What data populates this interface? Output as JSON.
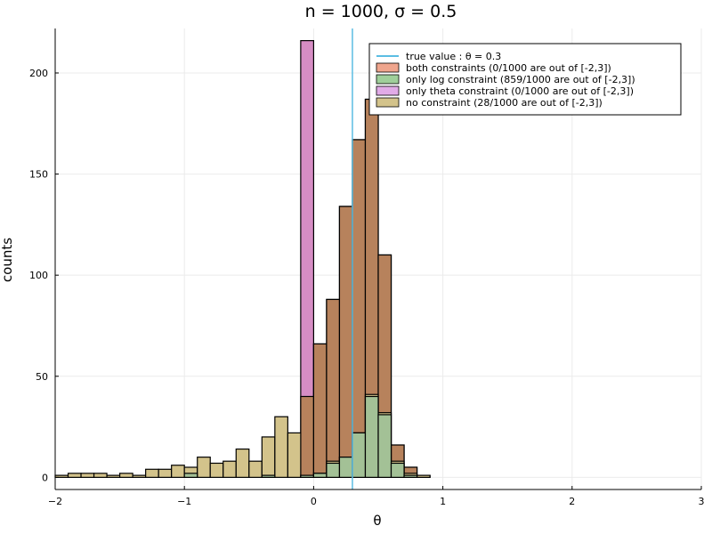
{
  "chart_data": {
    "type": "bar",
    "title": "n = 1000, σ = 0.5",
    "xlabel": "θ",
    "ylabel": "counts",
    "xlim": [
      -2,
      3
    ],
    "ylim": [
      -6,
      222
    ],
    "grid": true,
    "legend_position": "top-right",
    "xticks": [
      -2,
      -1,
      0,
      1,
      2,
      3
    ],
    "xtick_labels": [
      "−2",
      "−1",
      "0",
      "1",
      "2",
      "3"
    ],
    "yticks": [
      0,
      50,
      100,
      150,
      200
    ],
    "ytick_labels": [
      "0",
      "50",
      "100",
      "150",
      "200"
    ],
    "bin_width": 0.1,
    "reference_line": {
      "label": "true value : θ = 0.3",
      "x": 0.3,
      "color": "#5bbde3"
    },
    "series": [
      {
        "name": "only theta constraint (0/1000 are out of [-2,3])",
        "color": "#d68dc4",
        "bins": [
          {
            "x0": -0.1,
            "value": 216
          },
          {
            "x0": 0.0,
            "value": 66
          },
          {
            "x0": 0.1,
            "value": 88
          },
          {
            "x0": 0.2,
            "value": 134
          },
          {
            "x0": 0.3,
            "value": 167
          },
          {
            "x0": 0.4,
            "value": 187
          },
          {
            "x0": 0.5,
            "value": 110
          },
          {
            "x0": 0.6,
            "value": 16
          },
          {
            "x0": 0.7,
            "value": 5
          },
          {
            "x0": 0.8,
            "value": 1
          }
        ]
      },
      {
        "name": "both constraints (0/1000 are out of [-2,3])",
        "color": "#b7825c",
        "bins": [
          {
            "x0": -0.1,
            "value": 40
          },
          {
            "x0": 0.0,
            "value": 66
          },
          {
            "x0": 0.1,
            "value": 88
          },
          {
            "x0": 0.2,
            "value": 134
          },
          {
            "x0": 0.3,
            "value": 167
          },
          {
            "x0": 0.4,
            "value": 187
          },
          {
            "x0": 0.5,
            "value": 110
          },
          {
            "x0": 0.6,
            "value": 16
          },
          {
            "x0": 0.7,
            "value": 5
          },
          {
            "x0": 0.8,
            "value": 1
          }
        ]
      },
      {
        "name": "no constraint (28/1000 are out of [-2,3])",
        "color": "#d3c38b",
        "bins": [
          {
            "x0": -2.0,
            "value": 1
          },
          {
            "x0": -1.9,
            "value": 2
          },
          {
            "x0": -1.8,
            "value": 2
          },
          {
            "x0": -1.7,
            "value": 2
          },
          {
            "x0": -1.6,
            "value": 1
          },
          {
            "x0": -1.5,
            "value": 2
          },
          {
            "x0": -1.4,
            "value": 1
          },
          {
            "x0": -1.3,
            "value": 4
          },
          {
            "x0": -1.2,
            "value": 4
          },
          {
            "x0": -1.1,
            "value": 6
          },
          {
            "x0": -1.0,
            "value": 5
          },
          {
            "x0": -0.9,
            "value": 10
          },
          {
            "x0": -0.8,
            "value": 7
          },
          {
            "x0": -0.7,
            "value": 8
          },
          {
            "x0": -0.6,
            "value": 14
          },
          {
            "x0": -0.5,
            "value": 8
          },
          {
            "x0": -0.4,
            "value": 20
          },
          {
            "x0": -0.3,
            "value": 30
          },
          {
            "x0": -0.2,
            "value": 22
          },
          {
            "x0": -0.1,
            "value": 1
          },
          {
            "x0": 0.0,
            "value": 2
          },
          {
            "x0": 0.1,
            "value": 8
          },
          {
            "x0": 0.2,
            "value": 10
          },
          {
            "x0": 0.3,
            "value": 22
          },
          {
            "x0": 0.4,
            "value": 41
          },
          {
            "x0": 0.5,
            "value": 32
          },
          {
            "x0": 0.6,
            "value": 8
          },
          {
            "x0": 0.7,
            "value": 2
          },
          {
            "x0": 0.8,
            "value": 1
          }
        ]
      },
      {
        "name": "only log constraint (859/1000 are out of [-2,3])",
        "color": "#a3c196",
        "bins": [
          {
            "x0": -2.0,
            "value": 0
          },
          {
            "x0": -1.0,
            "value": 2
          },
          {
            "x0": -0.4,
            "value": 1
          },
          {
            "x0": -0.1,
            "value": 1
          },
          {
            "x0": 0.0,
            "value": 2
          },
          {
            "x0": 0.1,
            "value": 7
          },
          {
            "x0": 0.2,
            "value": 10
          },
          {
            "x0": 0.3,
            "value": 22
          },
          {
            "x0": 0.4,
            "value": 40
          },
          {
            "x0": 0.5,
            "value": 31
          },
          {
            "x0": 0.6,
            "value": 7
          },
          {
            "x0": 0.7,
            "value": 1
          }
        ]
      }
    ],
    "legend": [
      {
        "label": "true value : θ = 0.3",
        "kind": "line",
        "color": "#5bbde3"
      },
      {
        "label": "both constraints (0/1000 are out of [-2,3])",
        "kind": "patch",
        "color": "#efa58d"
      },
      {
        "label": "only log constraint (859/1000 are out of [-2,3])",
        "kind": "patch",
        "color": "#9fcf9a"
      },
      {
        "label": "only theta constraint (0/1000 are out of [-2,3])",
        "kind": "patch",
        "color": "#e1abe7"
      },
      {
        "label": "no constraint (28/1000 are out of [-2,3])",
        "kind": "patch",
        "color": "#d3c38b"
      }
    ]
  }
}
